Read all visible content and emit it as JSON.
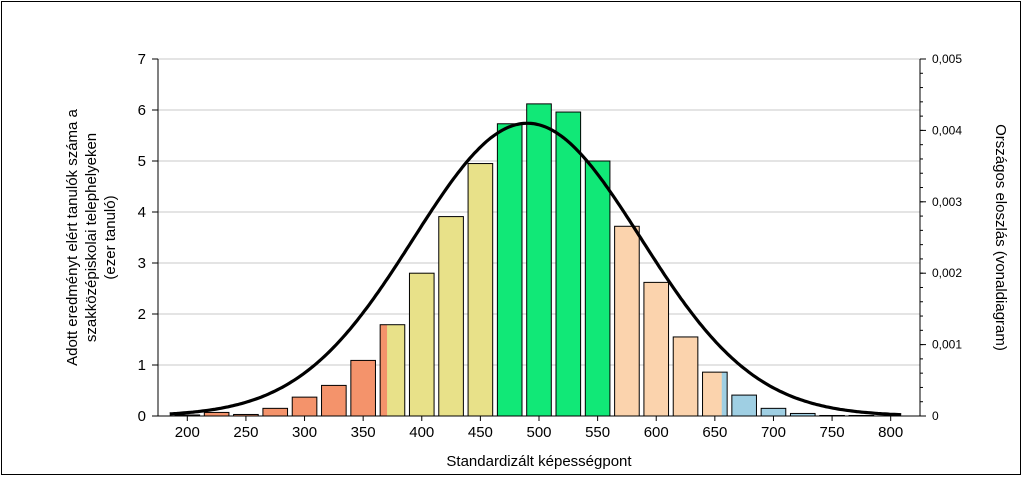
{
  "chart_data": {
    "type": "bar",
    "xlabel": "Standardizált képességpont",
    "ylabel_lines": [
      "Adott eredményt elért tanulók száma a",
      "szakközépiskolai telephelyeken",
      "(ezer tanuló)"
    ],
    "y2label": "Országos eloszlás (vonaldiagram)",
    "x_ticks": [
      "200",
      "250",
      "300",
      "350",
      "400",
      "450",
      "500",
      "550",
      "600",
      "650",
      "700",
      "750",
      "800"
    ],
    "y_ticks": [
      "0",
      "1",
      "2",
      "3",
      "4",
      "5",
      "6",
      "7"
    ],
    "y2_ticks": [
      "0",
      "0,001",
      "0,002",
      "0,003",
      "0,004",
      "0,005"
    ],
    "xlim": [
      175,
      825
    ],
    "ylim": [
      0,
      7
    ],
    "y2lim": [
      0,
      0.005
    ],
    "grid": true,
    "bins": [
      {
        "x": 200,
        "value": 0.02,
        "color": "#f4936b"
      },
      {
        "x": 225,
        "value": 0.07,
        "color": "#f4936b"
      },
      {
        "x": 250,
        "value": 0.03,
        "color": "#f4936b"
      },
      {
        "x": 275,
        "value": 0.15,
        "color": "#f4936b"
      },
      {
        "x": 300,
        "value": 0.37,
        "color": "#f4936b"
      },
      {
        "x": 325,
        "value": 0.6,
        "color": "#f4936b"
      },
      {
        "x": 350,
        "value": 1.09,
        "color": "#f4936b"
      },
      {
        "x": 375,
        "value": 1.79,
        "color": "#e8e189",
        "split": 0.28,
        "split_color": "#f4936b"
      },
      {
        "x": 400,
        "value": 2.8,
        "color": "#e8e189"
      },
      {
        "x": 425,
        "value": 3.91,
        "color": "#e8e189"
      },
      {
        "x": 450,
        "value": 4.95,
        "color": "#e8e189"
      },
      {
        "x": 475,
        "value": 5.73,
        "color": "#11e877"
      },
      {
        "x": 500,
        "value": 6.12,
        "color": "#11e877"
      },
      {
        "x": 525,
        "value": 5.96,
        "color": "#11e877"
      },
      {
        "x": 550,
        "value": 5.0,
        "color": "#11e877"
      },
      {
        "x": 575,
        "value": 3.72,
        "color": "#fbd3ad"
      },
      {
        "x": 600,
        "value": 2.62,
        "color": "#fbd3ad"
      },
      {
        "x": 625,
        "value": 1.55,
        "color": "#fbd3ad"
      },
      {
        "x": 650,
        "value": 0.86,
        "color": "#fbd3ad",
        "split_right": 0.22,
        "split_color": "#9fcfe3"
      },
      {
        "x": 675,
        "value": 0.41,
        "color": "#9fcfe3"
      },
      {
        "x": 700,
        "value": 0.15,
        "color": "#9fcfe3"
      },
      {
        "x": 725,
        "value": 0.05,
        "color": "#9fcfe3"
      },
      {
        "x": 750,
        "value": 0.01,
        "color": "#9fcfe3"
      },
      {
        "x": 775,
        "value": 0.01,
        "color": "#9fcfe3"
      }
    ],
    "curve": {
      "type": "normal",
      "mean": 490,
      "sd": 97,
      "peak_density": 0.0041,
      "x_from": 185,
      "x_to": 810
    }
  }
}
